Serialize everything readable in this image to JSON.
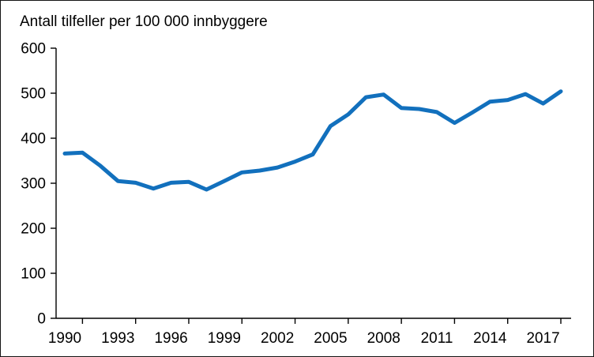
{
  "chart_data": {
    "type": "line",
    "title": "Antall tilfeller per 100 000 innbyggere",
    "x": [
      1990,
      1991,
      1992,
      1993,
      1994,
      1995,
      1996,
      1997,
      1998,
      1999,
      2000,
      2001,
      2002,
      2003,
      2004,
      2005,
      2006,
      2007,
      2008,
      2009,
      2010,
      2011,
      2012,
      2013,
      2014,
      2015,
      2016,
      2017,
      2018
    ],
    "values": [
      366,
      368,
      339,
      305,
      301,
      288,
      301,
      303,
      286,
      305,
      324,
      328,
      335,
      348,
      364,
      427,
      453,
      491,
      497,
      467,
      465,
      458,
      434,
      457,
      481,
      485,
      498,
      477,
      504
    ],
    "xlabel": "",
    "ylabel": "",
    "ylim": [
      0,
      600
    ],
    "y_ticks": [
      0,
      100,
      200,
      300,
      400,
      500,
      600
    ],
    "x_tick_labels": [
      "1990",
      "1993",
      "1996",
      "1999",
      "2002",
      "2005",
      "2008",
      "2011",
      "2014",
      "2017"
    ],
    "x_label_interval_years": 3,
    "grid": false,
    "legend_position": "none",
    "line_color": "#1270BD",
    "axis_color": "#000000",
    "background_color": "#ffffff"
  }
}
